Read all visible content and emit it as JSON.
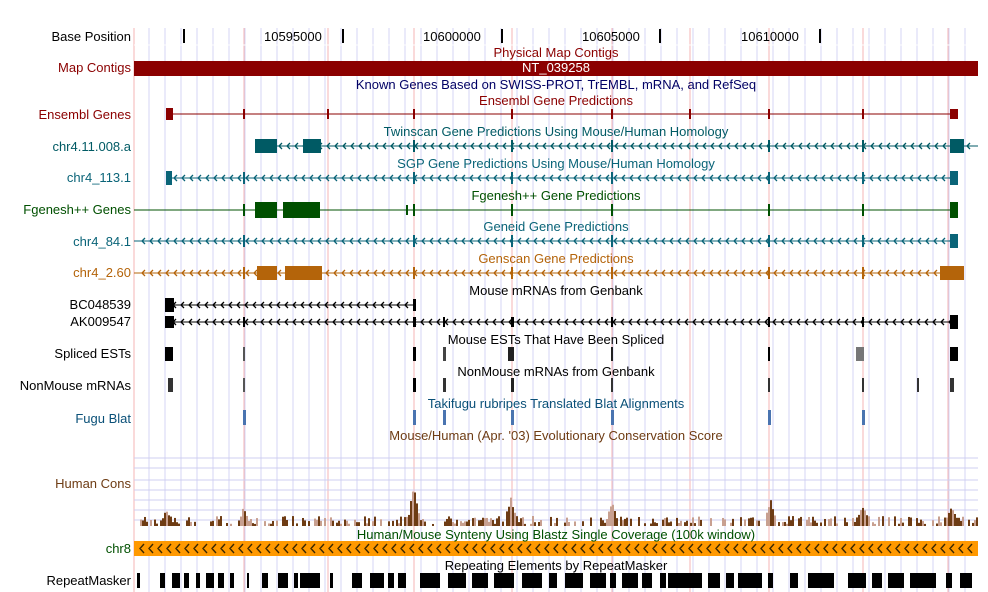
{
  "ruler": {
    "label": "Base Position",
    "ticks": [
      "10595000",
      "10600000",
      "10605000",
      "10610000"
    ]
  },
  "labels": {
    "map_contigs": "Map Contigs",
    "ensembl": "Ensembl Genes",
    "twinscan": "chr4.11.008.a",
    "sgp": "chr4_113.1",
    "fgenesh": "Fgenesh++ Genes",
    "geneid": "chr4_84.1",
    "genscan": "chr4_2.60",
    "mrna1": "BC048539",
    "mrna2": "AK009547",
    "spliced_ests": "Spliced ESTs",
    "nonmouse": "NonMouse mRNAs",
    "fugu": "Fugu Blat",
    "human_cons": "Human Cons",
    "chr8": "chr8",
    "repeatmasker": "RepeatMasker"
  },
  "titles": {
    "physical_map": "Physical Map Contigs",
    "contig_name": "NT_039258",
    "known_genes": "Known Genes Based on SWISS-PROT, TrEMBL, mRNA, and RefSeq",
    "ensembl": "Ensembl Gene Predictions",
    "twinscan": "Twinscan Gene Predictions Using Mouse/Human Homology",
    "sgp": "SGP Gene Predictions Using Mouse/Human Homology",
    "fgenesh": "Fgenesh++ Gene Predictions",
    "geneid": "Geneid Gene Predictions",
    "genscan": "Genscan Gene Predictions",
    "mouse_mrna": "Mouse mRNAs from Genbank",
    "mouse_est": "Mouse ESTs That Have Been Spliced",
    "nonmouse": "NonMouse mRNAs from Genbank",
    "fugu": "Takifugu rubripes Translated Blat Alignments",
    "conservation": "Mouse/Human (Apr. '03) Evolutionary Conservation Score",
    "synteny": "Human/Mouse Synteny Using Blastz Single Coverage (100k window)",
    "repeats": "Repeating Elements by RepeatMasker"
  },
  "colors": {
    "ensembl": "#8b0000",
    "twinscan": "#005a64",
    "sgp": "#0a6478",
    "fgenesh": "#005000",
    "geneid": "#0a6478",
    "genscan": "#b4640a",
    "mrna": "#000000",
    "fugu": "#4a74b0",
    "conservation": "#6e3c14",
    "synteny": "#ff9900",
    "known_genes": "#000064",
    "gridline": "#d4d4f5",
    "sepline": "#f5b4b4"
  },
  "icons": {
    "strand": "minus-strand-chevron-icon"
  }
}
